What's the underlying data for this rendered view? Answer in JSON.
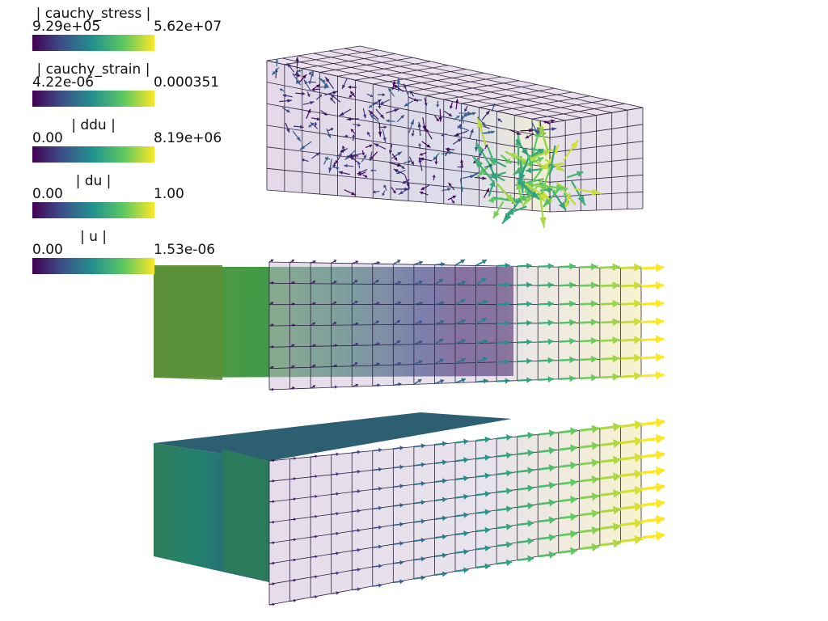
{
  "app": {
    "title": "",
    "background": "#ffffff"
  },
  "colormap": {
    "name": "viridis",
    "stops": [
      "#440154",
      "#3b528b",
      "#21918c",
      "#5ec962",
      "#fde725"
    ]
  },
  "legends": [
    {
      "title": "| cauchy_stress |",
      "min": "9.29e+05",
      "max": "5.62e+07"
    },
    {
      "title": "| cauchy_strain |",
      "min": "4.22e-06",
      "max": "0.000351"
    },
    {
      "title": "| ddu |",
      "min": "0.00",
      "max": "8.19e+06"
    },
    {
      "title": "| du |",
      "min": "0.00",
      "max": "1.00"
    },
    {
      "title": "| u |",
      "min": "0.00",
      "max": "1.53e-06"
    }
  ],
  "scene": {
    "mesh_color": "#cdb9d6",
    "grid_line_color": "#2c2340",
    "views": [
      {
        "name": "cauchy-stress-glyphs",
        "glyph_field": "cauchy_stress",
        "solid_overlay": false
      },
      {
        "name": "ddu-du-glyphs",
        "glyph_field": "du",
        "solid_overlay": true
      },
      {
        "name": "u-displacement-glyphs",
        "glyph_field": "u",
        "solid_overlay": true
      }
    ]
  }
}
